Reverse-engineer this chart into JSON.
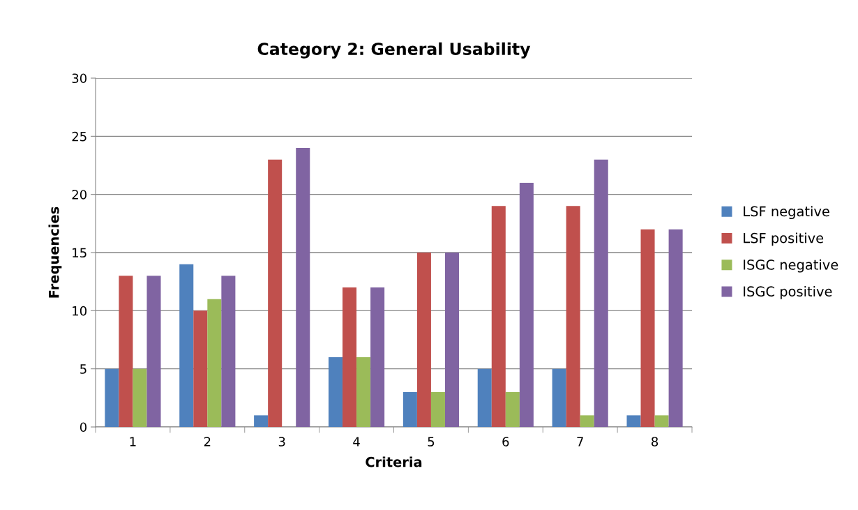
{
  "chart_data": {
    "type": "bar",
    "title": "Category 2: General Usability",
    "xlabel": "Criteria",
    "ylabel": "Frequencies",
    "categories": [
      "1",
      "2",
      "3",
      "4",
      "5",
      "6",
      "7",
      "8"
    ],
    "series": [
      {
        "name": "LSF negative",
        "color": "#4f81bd",
        "values": [
          5,
          14,
          1,
          6,
          3,
          5,
          5,
          1
        ]
      },
      {
        "name": "LSF positive",
        "color": "#c0504d",
        "values": [
          13,
          10,
          23,
          12,
          15,
          19,
          19,
          17
        ]
      },
      {
        "name": "ISGC negative",
        "color": "#9bbb59",
        "values": [
          5,
          11,
          0,
          6,
          3,
          3,
          1,
          1
        ]
      },
      {
        "name": "ISGC positive",
        "color": "#8064a2",
        "values": [
          13,
          13,
          24,
          12,
          15,
          21,
          23,
          17
        ]
      }
    ],
    "ylim": [
      0,
      30
    ],
    "yticks": [
      0,
      5,
      10,
      15,
      20,
      25,
      30
    ],
    "grid": "y",
    "legend": "right"
  }
}
